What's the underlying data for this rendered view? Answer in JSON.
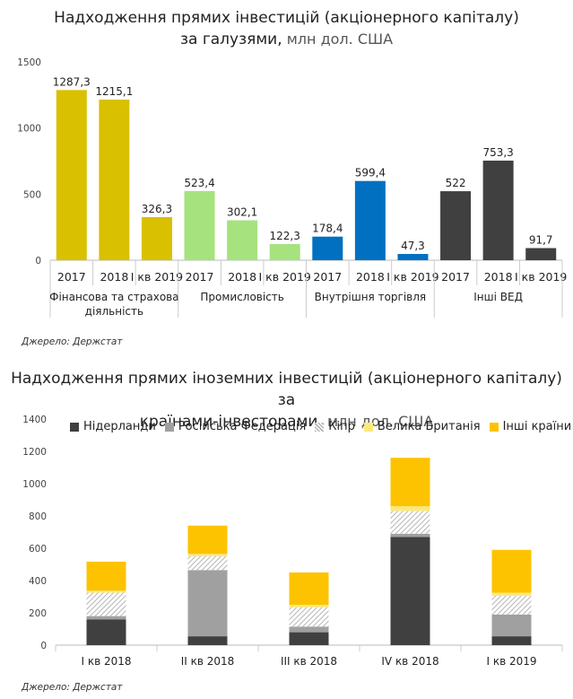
{
  "chart_data": [
    {
      "type": "bar",
      "title": "Надходження прямих інвестицій (акціонерного капіталу)",
      "subtitle_bold": "за галузями,",
      "subtitle_light": " млн дол. США",
      "ylim": [
        0,
        1500
      ],
      "yticks": [
        "0",
        "500",
        "1000",
        "1500"
      ],
      "groups": [
        {
          "name": "Фінансова та страхова діяльність",
          "name_lines": [
            "Фінансова та страхова",
            "діяльність"
          ],
          "color": "#d9c000",
          "bars": [
            {
              "label": "2017",
              "value": 1287.3,
              "text": "1287,3"
            },
            {
              "label": "2018",
              "value": 1215.1,
              "text": "1215,1"
            },
            {
              "label": "І кв 2019",
              "value": 326.3,
              "text": "326,3"
            }
          ]
        },
        {
          "name": "Промисловість",
          "name_lines": [
            "Промисловість"
          ],
          "color": "#a6e27e",
          "bars": [
            {
              "label": "2017",
              "value": 523.4,
              "text": "523,4"
            },
            {
              "label": "2018",
              "value": 302.1,
              "text": "302,1"
            },
            {
              "label": "І кв 2019",
              "value": 122.3,
              "text": "122,3"
            }
          ]
        },
        {
          "name": "Внутрішня торгівля",
          "name_lines": [
            "Внутрішня торгівля"
          ],
          "color": "#0270c0",
          "bars": [
            {
              "label": "2017",
              "value": 178.4,
              "text": "178,4"
            },
            {
              "label": "2018",
              "value": 599.4,
              "text": "599,4"
            },
            {
              "label": "І кв 2019",
              "value": 47.3,
              "text": "47,3"
            }
          ]
        },
        {
          "name": "Інші ВЕД",
          "name_lines": [
            "Інші ВЕД"
          ],
          "color": "#404040",
          "bars": [
            {
              "label": "2017",
              "value": 522,
              "text": "522"
            },
            {
              "label": "2018",
              "value": 753.3,
              "text": "753,3"
            },
            {
              "label": "І кв 2019",
              "value": 91.7,
              "text": "91,7"
            }
          ]
        }
      ],
      "source": "Джерело: Держстат"
    },
    {
      "type": "bar",
      "stacked": true,
      "title": "Надходження прямих іноземних інвестицій (акціонерного капіталу) за",
      "subtitle_bold": "країнами-інвесторами,",
      "subtitle_light": " млн дол. США",
      "ylim": [
        0,
        1400
      ],
      "yticks": [
        "0",
        "200",
        "400",
        "600",
        "800",
        "1000",
        "1200",
        "1400"
      ],
      "categories": [
        "І кв 2018",
        "ІІ кв 2018",
        "ІІІ кв 2018",
        "IV кв 2018",
        "І кв 2019"
      ],
      "series": [
        {
          "name": "Нідерланди",
          "color": "#404040",
          "values": [
            160,
            55,
            80,
            670,
            55
          ]
        },
        {
          "name": "Російська Федерація",
          "color": "#a0a0a0",
          "values": [
            20,
            410,
            35,
            20,
            135
          ]
        },
        {
          "name": "Кіпр",
          "color": "#e2e2e2",
          "pattern": true,
          "values": [
            145,
            85,
            120,
            140,
            115
          ]
        },
        {
          "name": "Велика Британія",
          "color": "#fbe97f",
          "values": [
            12,
            15,
            15,
            30,
            20
          ]
        },
        {
          "name": "Інші країни",
          "color": "#fdc300",
          "values": [
            180,
            175,
            200,
            300,
            265
          ]
        }
      ],
      "source": "Джерело: Держстат"
    }
  ]
}
